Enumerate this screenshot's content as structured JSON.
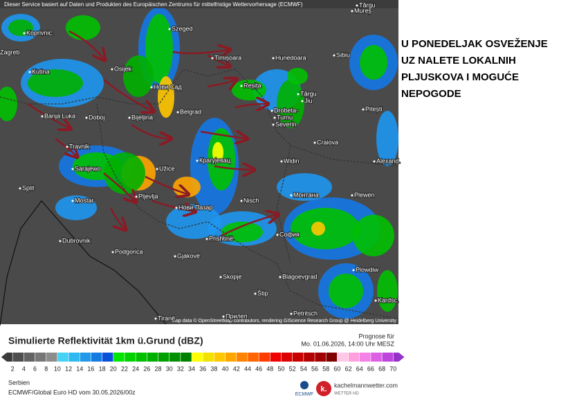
{
  "header": {
    "notice": "Dieser Service basiert auf Daten und Produkten des Europäischen Zentrums für mittelfristige Wettervorhersage (ECMWF)",
    "attribution": "Map data © OpenStreetMap contributors, rendering GIScience Research Group @ Heidelberg University"
  },
  "headline": [
    "U PONEDELJAK OSVEŽENJE",
    "UZ NALETE LOKALNIH",
    "PLJUSKOVA I MOGUĆE",
    "NEPOGODE"
  ],
  "map": {
    "cities": [
      "Târgu",
      "Mureș",
      "Koprivnic.",
      "Szeged",
      "Timișoara",
      "Hunedoara",
      "Sibiu",
      "Zagreb",
      "Kutina",
      "Osijek",
      "Нови Сад",
      "Reșița",
      "Târgu",
      "Jiu",
      "Banja Luka",
      "Doboj",
      "Bijeljina",
      "Belgrad",
      "Drobeta-",
      "Turnu",
      "Severin",
      "Pitești",
      "Craiova",
      "Travnik",
      "Sarajewo",
      "Užice",
      "Крагујевац",
      "Widin",
      "Alexand.",
      "Split",
      "Mostar",
      "Pljevlja",
      "Нови Пазар",
      "Nisch",
      "Монтана",
      "Plewen",
      "Dubrovnik",
      "Podgorica",
      "Prishtinë",
      "София",
      "Gjakovë",
      "Skopje",
      "Blagoevgrad",
      "Plowdiw",
      "Štip",
      "Kardsc.",
      "Прилеп",
      "Petritsch",
      "Tiranë"
    ]
  },
  "legend": {
    "title": "Simulierte Reflektivität 1km ü.Grund (dBZ)",
    "ticks": [
      2,
      4,
      6,
      8,
      10,
      12,
      14,
      16,
      18,
      20,
      22,
      24,
      26,
      28,
      30,
      32,
      34,
      36,
      38,
      40,
      42,
      44,
      46,
      48,
      50,
      52,
      54,
      56,
      58,
      60,
      62,
      64,
      66,
      68,
      70
    ],
    "colors": [
      "#3a3a3a",
      "#4e4e4e",
      "#626262",
      "#767676",
      "#8c8c8c",
      "#46d2f5",
      "#30b8f0",
      "#209ae8",
      "#147ce0",
      "#0a50d8",
      "#00e600",
      "#00d200",
      "#00c000",
      "#00b000",
      "#00a000",
      "#009000",
      "#008000",
      "#ffff00",
      "#f2e200",
      "#ffc800",
      "#ffa500",
      "#ff8200",
      "#ff6400",
      "#ff3c00",
      "#f00000",
      "#dc0000",
      "#c80000",
      "#b40000",
      "#a00000",
      "#800000",
      "#ffc8e6",
      "#ffa0dc",
      "#f580e6",
      "#dc60e6",
      "#be46dc",
      "#9632c8"
    ]
  },
  "forecast": {
    "label": "Prognose für",
    "time": "Mo. 01.06.2026, 14:00 Uhr MESZ"
  },
  "footer": {
    "region": "Serbien",
    "model": "ECMWF/Global Euro HD vom 30.05.2026/00z",
    "ecmwf": "ECMWF",
    "brand": "kachelmannwetter.com",
    "brand_sub": "WETTER HD",
    "logo_letter": "k."
  }
}
